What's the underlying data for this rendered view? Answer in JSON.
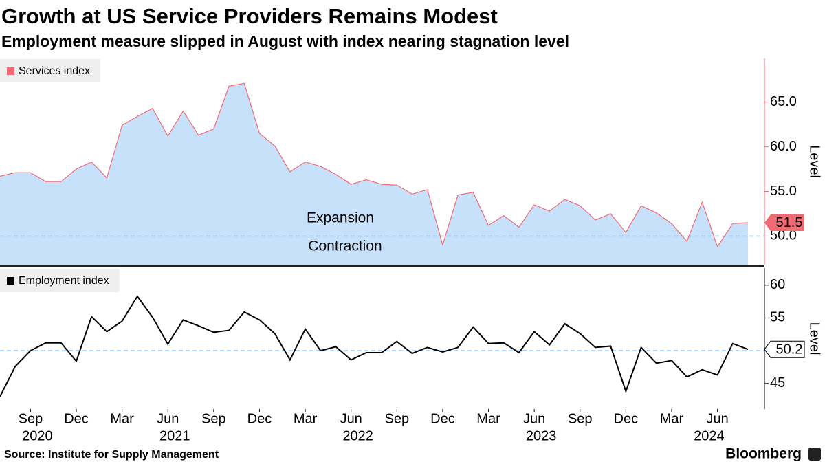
{
  "title": "Growth at US Service Providers Remains Modest",
  "subtitle": "Employment measure slipped in August with index nearing stagnation level",
  "source": "Source: Institute for Supply Management",
  "brand": "Bloomberg",
  "chart_data": [
    {
      "type": "area",
      "x": [
        "2020-07",
        "2020-08",
        "2020-09",
        "2020-10",
        "2020-11",
        "2020-12",
        "2021-01",
        "2021-02",
        "2021-03",
        "2021-04",
        "2021-05",
        "2021-06",
        "2021-07",
        "2021-08",
        "2021-09",
        "2021-10",
        "2021-11",
        "2021-12",
        "2022-01",
        "2022-02",
        "2022-03",
        "2022-04",
        "2022-05",
        "2022-06",
        "2022-07",
        "2022-08",
        "2022-09",
        "2022-10",
        "2022-11",
        "2022-12",
        "2023-01",
        "2023-02",
        "2023-03",
        "2023-04",
        "2023-05",
        "2023-06",
        "2023-07",
        "2023-08",
        "2023-09",
        "2023-10",
        "2023-11",
        "2023-12",
        "2024-01",
        "2024-02",
        "2024-03",
        "2024-04",
        "2024-05",
        "2024-06",
        "2024-07",
        "2024-08"
      ],
      "xlim": [
        "2020-07",
        "2024-08"
      ],
      "series": [
        {
          "name": "Services index",
          "color": "#f06b73",
          "values": [
            56.7,
            57.1,
            57.1,
            56.1,
            56.1,
            57.5,
            58.3,
            56.5,
            62.4,
            63.4,
            64.3,
            61.2,
            64.0,
            61.3,
            62.0,
            66.8,
            67.1,
            61.5,
            60.1,
            57.2,
            58.3,
            57.8,
            56.9,
            55.8,
            56.3,
            55.8,
            55.7,
            54.7,
            55.2,
            49.0,
            54.6,
            54.9,
            51.2,
            52.3,
            51.0,
            53.5,
            52.8,
            54.1,
            53.4,
            51.8,
            52.5,
            50.4,
            53.4,
            52.6,
            51.4,
            49.4,
            53.8,
            48.8,
            51.4,
            51.5
          ]
        }
      ],
      "fill": "#c8e1fb",
      "axis_color": "#f06b73",
      "ylim": [
        46.8,
        69.9
      ],
      "yticks": [
        {
          "value": 50,
          "label": "50.0"
        },
        {
          "value": 55,
          "label": "55.0"
        },
        {
          "value": 60,
          "label": "60.0"
        },
        {
          "value": 65,
          "label": "65.0"
        }
      ],
      "ylabel": "Level",
      "reference_line": 50,
      "annotations": [
        {
          "text": "Expansion",
          "color": "#5ec22a"
        },
        {
          "text": "Contraction",
          "color": "#e8355a"
        }
      ]
    },
    {
      "type": "line",
      "x": [
        "2020-07",
        "2020-08",
        "2020-09",
        "2020-10",
        "2020-11",
        "2020-12",
        "2021-01",
        "2021-02",
        "2021-03",
        "2021-04",
        "2021-05",
        "2021-06",
        "2021-07",
        "2021-08",
        "2021-09",
        "2021-10",
        "2021-11",
        "2021-12",
        "2022-01",
        "2022-02",
        "2022-03",
        "2022-04",
        "2022-05",
        "2022-06",
        "2022-07",
        "2022-08",
        "2022-09",
        "2022-10",
        "2022-11",
        "2022-12",
        "2023-01",
        "2023-02",
        "2023-03",
        "2023-04",
        "2023-05",
        "2023-06",
        "2023-07",
        "2023-08",
        "2023-09",
        "2023-10",
        "2023-11",
        "2023-12",
        "2024-01",
        "2024-02",
        "2024-03",
        "2024-04",
        "2024-05",
        "2024-06",
        "2024-07",
        "2024-08"
      ],
      "xlim": [
        "2020-07",
        "2024-08"
      ],
      "series": [
        {
          "name": "Employment index",
          "color": "#000000",
          "values": [
            43.0,
            47.6,
            50.0,
            51.2,
            51.2,
            48.4,
            55.2,
            52.9,
            54.5,
            58.3,
            55.1,
            51.0,
            54.7,
            53.8,
            52.8,
            53.1,
            55.9,
            54.7,
            52.6,
            48.6,
            53.3,
            50.0,
            50.6,
            48.6,
            49.7,
            49.7,
            51.4,
            49.6,
            50.5,
            49.8,
            50.5,
            53.6,
            51.1,
            51.2,
            49.7,
            52.9,
            50.9,
            54.1,
            52.6,
            50.5,
            50.7,
            43.8,
            50.5,
            48.1,
            48.5,
            46.0,
            47.1,
            46.3,
            51.1,
            50.2
          ]
        }
      ],
      "axis_color": "#000000",
      "ylim": [
        41.1,
        62.6
      ],
      "yticks": [
        45,
        55,
        60
      ],
      "ylabel": "Level",
      "reference_line": 50,
      "xticks": [
        {
          "value": "2020-09",
          "label": "Sep"
        },
        {
          "value": "2020-12",
          "label": "Dec"
        },
        {
          "value": "2021-03",
          "label": "Mar"
        },
        {
          "value": "2021-06",
          "label": "Jun"
        },
        {
          "value": "2021-09",
          "label": "Sep"
        },
        {
          "value": "2021-12",
          "label": "Dec"
        },
        {
          "value": "2022-03",
          "label": "Mar"
        },
        {
          "value": "2022-06",
          "label": "Jun"
        },
        {
          "value": "2022-09",
          "label": "Sep"
        },
        {
          "value": "2022-12",
          "label": "Dec"
        },
        {
          "value": "2023-03",
          "label": "Mar"
        },
        {
          "value": "2023-06",
          "label": "Jun"
        },
        {
          "value": "2023-09",
          "label": "Sep"
        },
        {
          "value": "2023-12",
          "label": "Dec"
        },
        {
          "value": "2024-03",
          "label": "Mar"
        },
        {
          "value": "2024-06",
          "label": "Jun"
        }
      ],
      "xtick_years": [
        {
          "value": "2020-09",
          "label": "2020"
        },
        {
          "value": "2021-06",
          "label": "2021"
        },
        {
          "value": "2022-06",
          "label": "2022"
        },
        {
          "value": "2023-06",
          "label": "2023"
        },
        {
          "value": "2024-05",
          "label": "2024"
        }
      ]
    }
  ]
}
